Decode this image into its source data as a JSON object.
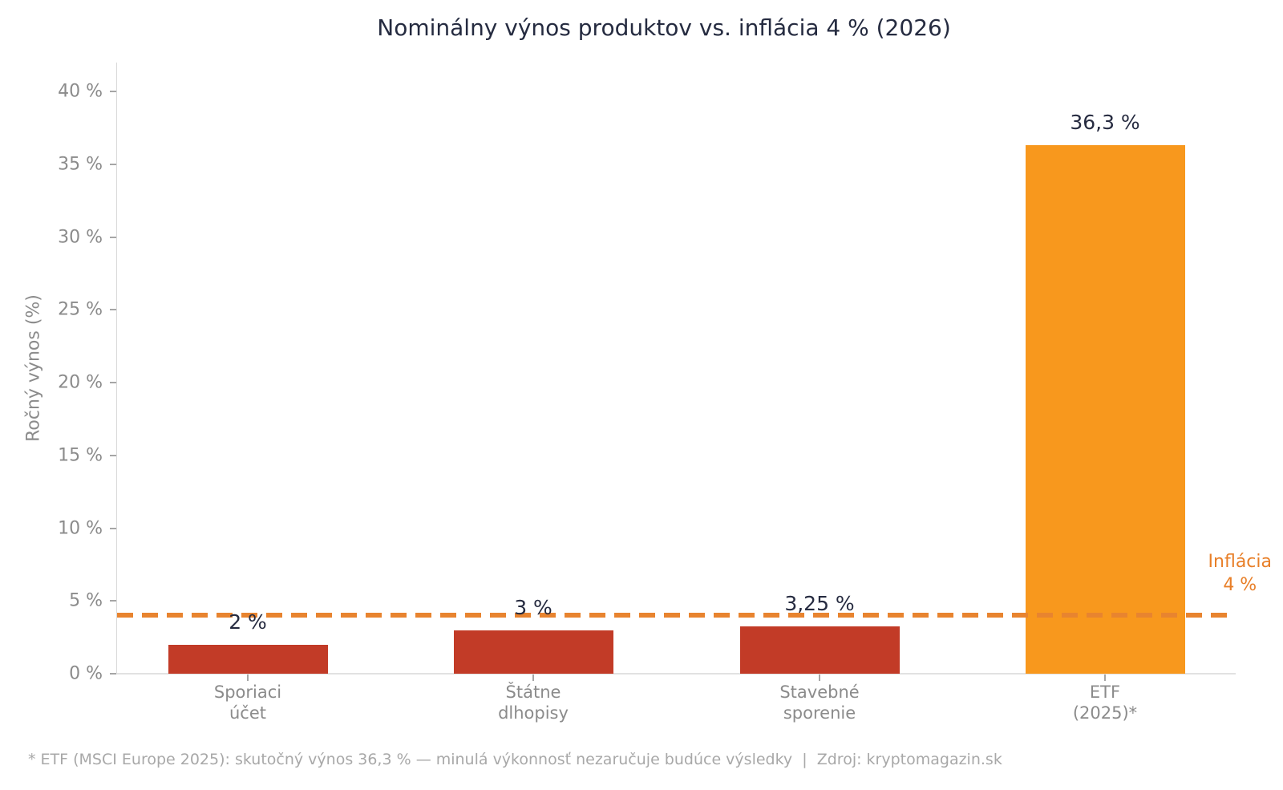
{
  "title": "Nominálny výnos produktov vs. inflácia 4 % (2026)",
  "footnote": "* ETF (MSCI Europe 2025): skutočný výnos 36,3 % — minulá výkonnosť nezaručuje budúce výsledky  |  Zdroj: kryptomagazin.sk",
  "colors": {
    "bar_red": "#c23b27",
    "bar_orange": "#f8981d",
    "reference_line_orange": "#e8842f",
    "reference_label_orange": "#e87f28",
    "title_navy": "#252b40",
    "axis_gray": "#8b8b8b",
    "footnote_gray": "#a8a8a8"
  },
  "chart_data": {
    "type": "bar",
    "title": "Nominálny výnos produktov vs. inflácia 4 % (2026)",
    "ylabel": "Ročný výnos (%)",
    "xlabel": "",
    "categories": [
      "Sporiaci\núčet",
      "Štátne\ndlhopisy",
      "Stavebné\nsporenie",
      "ETF\n(2025)*"
    ],
    "values": [
      2,
      3,
      3.25,
      36.3
    ],
    "value_labels": [
      "2 %",
      "3 %",
      "3,25 %",
      "36,3 %"
    ],
    "bar_colors": [
      "#c23b27",
      "#c23b27",
      "#c23b27",
      "#f8981d"
    ],
    "ylim": [
      0,
      42
    ],
    "yticks": [
      0,
      5,
      10,
      15,
      20,
      25,
      30,
      35,
      40
    ],
    "ytick_labels": [
      "0 %",
      "5 %",
      "10 %",
      "15 %",
      "20 %",
      "25 %",
      "30 %",
      "35 %",
      "40 %"
    ],
    "grid": false,
    "legend": "none",
    "reference_line": {
      "value": 4,
      "style": "dashed",
      "color": "#e8842f",
      "label": "Inflácia\n4 %"
    }
  }
}
